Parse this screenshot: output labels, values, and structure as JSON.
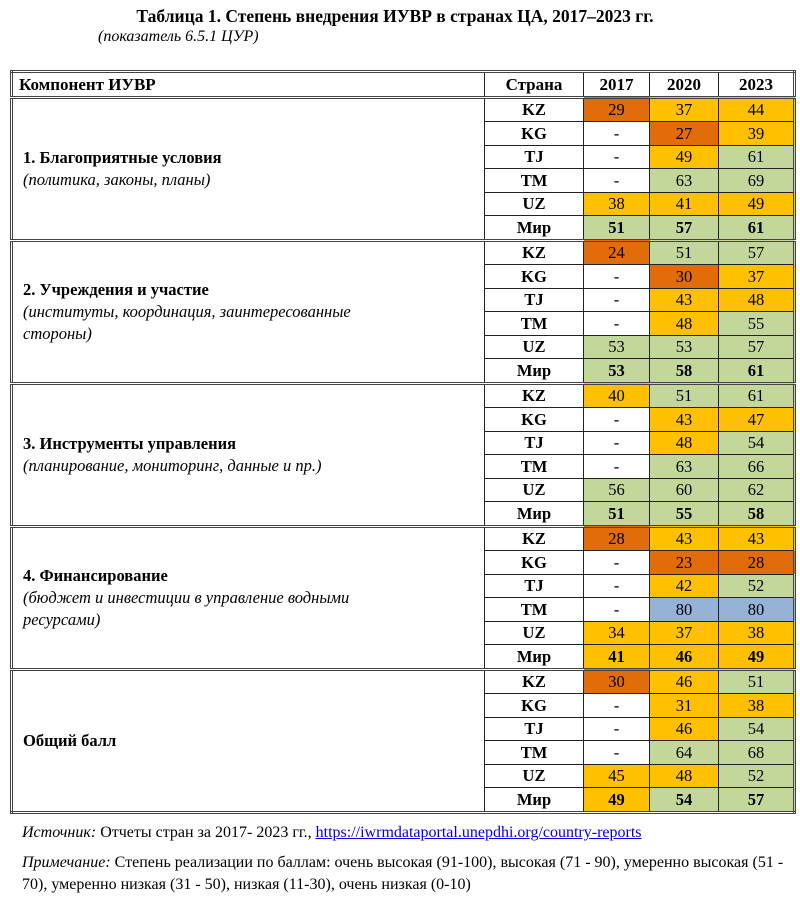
{
  "title": "Таблица 1. Степень  внедрения ИУВР в странах ЦА, 2017–2023  гг.",
  "subtitle": "(показатель 6.5.1 ЦУР)",
  "table": {
    "headers": [
      "Компонент ИУВР",
      "Страна",
      "2017",
      "2020",
      "2023"
    ],
    "groups": [
      {
        "name": "1. Благоприятные условия",
        "desc": "(политика, законы, планы)",
        "rows": [
          [
            "KZ",
            "29",
            "37",
            "44"
          ],
          [
            "KG",
            "-",
            "27",
            "39"
          ],
          [
            "TJ",
            "-",
            "49",
            "61"
          ],
          [
            "TM",
            "-",
            "63",
            "69"
          ],
          [
            "UZ",
            "38",
            "41",
            "49"
          ],
          [
            "Мир",
            "51",
            "57",
            "61"
          ]
        ]
      },
      {
        "name": "2. Учреждения и участие",
        "desc": "(институты, координация, заинтересованные стороны)",
        "rows": [
          [
            "KZ",
            "24",
            "51",
            "57"
          ],
          [
            "KG",
            "-",
            "30",
            "37"
          ],
          [
            "TJ",
            "-",
            "43",
            "48"
          ],
          [
            "TM",
            "-",
            "48",
            "55"
          ],
          [
            "UZ",
            "53",
            "53",
            "57"
          ],
          [
            "Мир",
            "53",
            "58",
            "61"
          ]
        ]
      },
      {
        "name": "3. Инструменты управления",
        "desc": "(планирование, мониторинг, данные и пр.)",
        "rows": [
          [
            "KZ",
            "40",
            "51",
            "61"
          ],
          [
            "KG",
            "-",
            "43",
            "47"
          ],
          [
            "TJ",
            "-",
            "48",
            "54"
          ],
          [
            "TM",
            "-",
            "63",
            "66"
          ],
          [
            "UZ",
            "56",
            "60",
            "62"
          ],
          [
            "Мир",
            "51",
            "55",
            "58"
          ]
        ]
      },
      {
        "name": "4. Финансирование",
        "desc": "(бюджет и инвестиции в управление водными ресурсами)",
        "rows": [
          [
            "KZ",
            "28",
            "43",
            "43"
          ],
          [
            "KG",
            "-",
            "23",
            "28"
          ],
          [
            "TJ",
            "-",
            "42",
            "52"
          ],
          [
            "TM",
            "-",
            "80",
            "80"
          ],
          [
            "UZ",
            "34",
            "37",
            "38"
          ],
          [
            "Мир",
            "41",
            "46",
            "49"
          ]
        ]
      },
      {
        "name": "Общий балл",
        "desc": "",
        "rows": [
          [
            "KZ",
            "30",
            "46",
            "51"
          ],
          [
            "KG",
            "-",
            "31",
            "38"
          ],
          [
            "TJ",
            "-",
            "46",
            "54"
          ],
          [
            "TM",
            "-",
            "64",
            "68"
          ],
          [
            "UZ",
            "45",
            "48",
            "52"
          ],
          [
            "Мир",
            "49",
            "54",
            "57"
          ]
        ]
      }
    ]
  },
  "colors": {
    "low_11_30": "#E26B0A",
    "moderately_low_31_50": "#FFC000",
    "moderately_high_51_70": "#C4D79B",
    "high_71_90": "#95B3D7"
  },
  "source": {
    "label": "Источник:",
    "text": " Отчеты стран за 2017- 2023 гг., ",
    "link": "https://iwrmdataportal.unepdhi.org/country-reports"
  },
  "note": {
    "label": "Примечание:",
    "text": " Степень реализации по баллам: очень высокая (91-100), высокая (71 - 90), умеренно высокая (51 - 70), умеренно низкая (31 - 50), низкая (11-30), очень низкая (0-10)"
  }
}
